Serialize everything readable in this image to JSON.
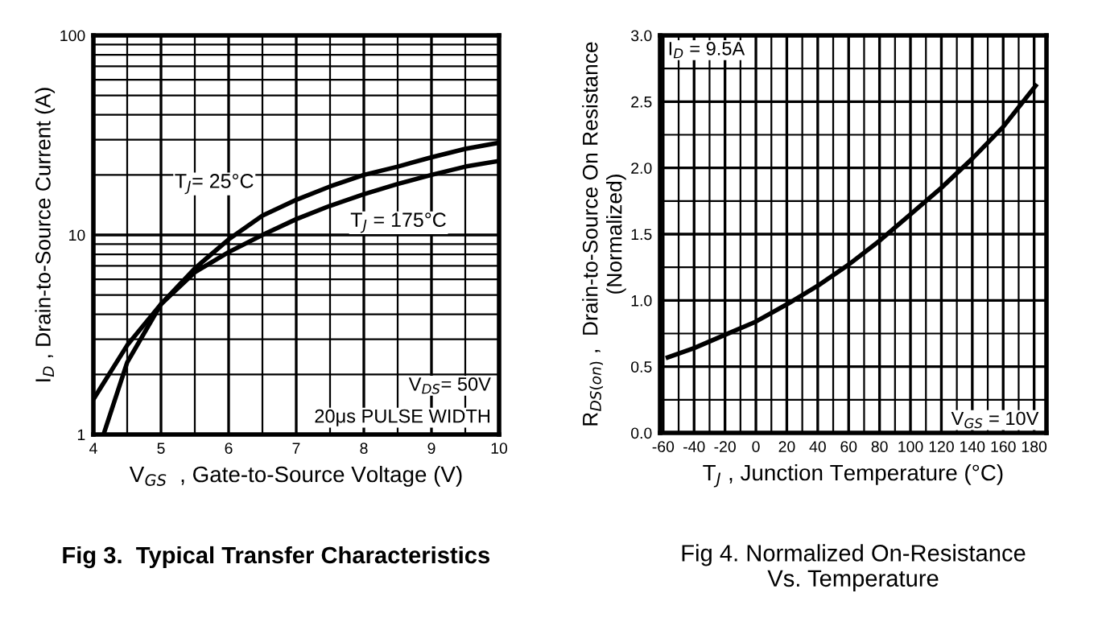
{
  "chart_data": [
    {
      "type": "line",
      "title": "Fig 3.  Typical Transfer Characteristics",
      "xlabel": "V$_{GS}$  , Gate-to-Source Voltage (V)",
      "ylabel": "I$_{D}$ , Drain-to-Source Current (A)",
      "log": "y",
      "xlim": [
        4,
        10
      ],
      "ylim": [
        1,
        100
      ],
      "xticks": [
        4,
        5,
        6,
        7,
        8,
        9,
        10
      ],
      "yticks": [
        1,
        10,
        100
      ],
      "grid": true,
      "legend": false,
      "line_style": "solid",
      "marker": "none",
      "series": [
        {
          "name": "T$_{J}$= 25°C",
          "color": "#000000",
          "x": [
            4,
            4.5,
            5,
            5.5,
            6,
            6.5,
            7,
            7.5,
            8,
            8.5,
            9,
            9.5,
            10
          ],
          "values": [
            1.5,
            2.8,
            4.5,
            6.8,
            9.5,
            12.5,
            15,
            17.5,
            20,
            22,
            24.5,
            27,
            29
          ]
        },
        {
          "name": "T$_{J}$ = 175°C",
          "color": "#000000",
          "x": [
            4.15,
            4.5,
            5,
            5.5,
            6,
            6.5,
            7,
            7.5,
            8,
            8.5,
            9,
            9.5,
            10
          ],
          "values": [
            1.0,
            2.3,
            4.5,
            6.5,
            8.2,
            10,
            12,
            14,
            16,
            18,
            20,
            22,
            23.5
          ]
        }
      ],
      "annotations": [
        "V$_{DS}$= 50V",
        "20μs PULSE WIDTH"
      ]
    },
    {
      "type": "line",
      "title": "Fig 4. Normalized On-Resistance\nVs. Temperature",
      "xlabel": "T$_{J}$ , Junction Temperature (°C)",
      "ylabel": "R$_{DS(on)}$ ,  Drain-to-Source On Resistance\n(Normalized)",
      "xlim": [
        -62,
        188
      ],
      "ylim": [
        0,
        3.0
      ],
      "xticks": [
        -60,
        -40,
        -20,
        0,
        20,
        40,
        60,
        80,
        100,
        120,
        140,
        160,
        180
      ],
      "yticks": [
        {
          "value": 0,
          "label": "0.0"
        },
        0.5,
        {
          "value": 1,
          "label": "1.0"
        },
        1.5,
        {
          "value": 2,
          "label": "2.0"
        },
        2.5,
        {
          "value": 3,
          "label": "3.0"
        }
      ],
      "grid": true,
      "legend": false,
      "line_style": "solid",
      "marker": "none",
      "series": [
        {
          "color": "#000000",
          "x": [
            -57,
            -40,
            -20,
            0,
            20,
            40,
            60,
            80,
            100,
            120,
            140,
            160,
            181
          ],
          "values": [
            0.57,
            0.64,
            0.74,
            0.84,
            0.97,
            1.11,
            1.27,
            1.45,
            1.65,
            1.85,
            2.07,
            2.31,
            2.62
          ]
        }
      ],
      "annotations": [
        "I$_{D}$ = 9.5A",
        "V$_{GS}$ = 10V"
      ]
    }
  ]
}
